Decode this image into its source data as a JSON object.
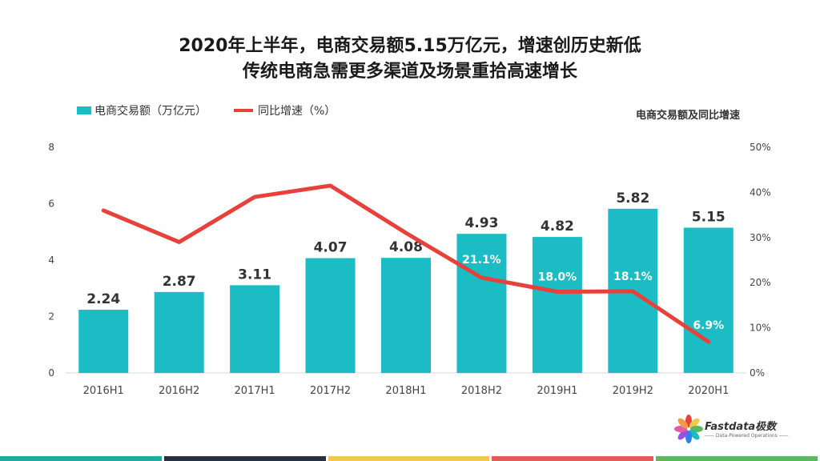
{
  "title": {
    "line1": "2020年上半年，电商交易额5.15万亿元，增速创历史新低",
    "line2": "传统电商急需更多渠道及场景重拾高速增长"
  },
  "legend": {
    "bar_label": "电商交易额（万亿元）",
    "line_label": "同比增速（%）"
  },
  "chart_subtitle": "电商交易额及同比增速",
  "logo": {
    "name": "Fastdata极数",
    "tagline": "—— Data-Powered Operations ——"
  },
  "colors": {
    "bar": "#1BBCC3",
    "line": "#E8413C",
    "footer": [
      "#1BAE9E",
      "#263040",
      "#F2C94C",
      "#E35B52",
      "#5BB85D"
    ]
  },
  "chart_data": {
    "type": "bar",
    "categories": [
      "2016H1",
      "2016H2",
      "2017H1",
      "2017H2",
      "2018H1",
      "2018H2",
      "2019H1",
      "2019H2",
      "2020H1"
    ],
    "series": [
      {
        "name": "电商交易额（万亿元）",
        "type": "bar",
        "axis": "left",
        "values": [
          2.24,
          2.87,
          3.11,
          4.07,
          4.08,
          4.93,
          4.82,
          5.82,
          5.15
        ],
        "labels": [
          "2.24",
          "2.87",
          "3.11",
          "4.07",
          "4.08",
          "4.93",
          "4.82",
          "5.82",
          "5.15"
        ]
      },
      {
        "name": "同比增速（%）",
        "type": "line",
        "axis": "right",
        "values": [
          36,
          29,
          39,
          41.5,
          31,
          21.1,
          18.0,
          18.1,
          6.9
        ],
        "labels": [
          "",
          "",
          "",
          "",
          "",
          "21.1%",
          "18.0%",
          "18.1%",
          "6.9%"
        ]
      }
    ],
    "y_left": {
      "min": 0,
      "max": 8,
      "ticks": [
        "0",
        "2",
        "4",
        "6",
        "8"
      ]
    },
    "y_right": {
      "min": 0,
      "max": 50,
      "ticks": [
        "0%",
        "10%",
        "20%",
        "30%",
        "40%",
        "50%"
      ]
    },
    "grid": false,
    "legend_position": "top-left"
  }
}
